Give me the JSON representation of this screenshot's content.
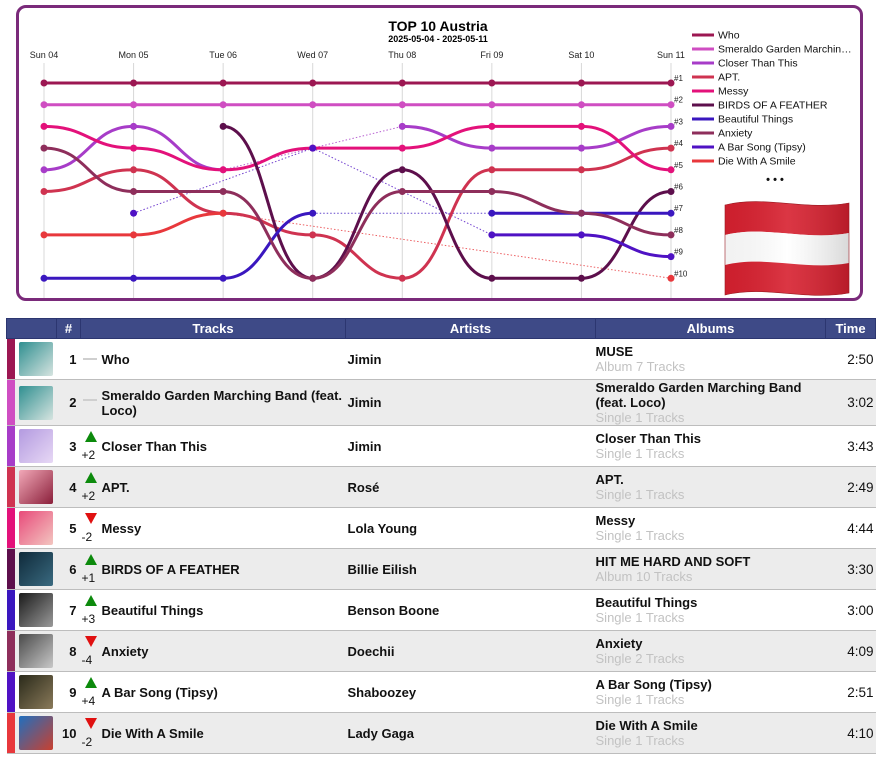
{
  "chart": {
    "title": "TOP 10 Austria",
    "subtitle": "2025-05-04 - 2025-05-11",
    "days": [
      "Sun 04",
      "Mon 05",
      "Tue 06",
      "Wed 07",
      "Thu 08",
      "Fri 09",
      "Sat 10",
      "Sun 11"
    ],
    "rank_labels": [
      "#1",
      "#2",
      "#3",
      "#4",
      "#5",
      "#6",
      "#7",
      "#8",
      "#9",
      "#10"
    ],
    "legend_more": "• • •",
    "flag_icon": "austria-flag-icon"
  },
  "chart_data": {
    "type": "line",
    "title": "TOP 10 Austria",
    "subtitle": "2025-05-04 - 2025-05-11",
    "x": [
      "Sun 04",
      "Mon 05",
      "Tue 06",
      "Wed 07",
      "Thu 08",
      "Fri 09",
      "Sat 10",
      "Sun 11"
    ],
    "y_axis": "rank (1 at top)",
    "ylim": [
      1,
      10
    ],
    "series": [
      {
        "name": "Who",
        "color": "#9c1752",
        "ranks": [
          1,
          1,
          1,
          1,
          1,
          1,
          1,
          1
        ]
      },
      {
        "name": "Smeraldo Garden Marching Band (feat. Loco)",
        "color": "#cf4ec2",
        "ranks": [
          2,
          2,
          2,
          2,
          2,
          2,
          2,
          2
        ]
      },
      {
        "name": "Closer Than This",
        "color": "#a73cc8",
        "ranks": [
          5,
          3,
          5,
          null,
          3,
          4,
          4,
          3
        ]
      },
      {
        "name": "APT.",
        "color": "#cf3350",
        "ranks": [
          6,
          5,
          7,
          8,
          10,
          5,
          5,
          4
        ]
      },
      {
        "name": "Messy",
        "color": "#e3117a",
        "ranks": [
          3,
          4,
          5,
          4,
          4,
          3,
          3,
          5
        ]
      },
      {
        "name": "BIRDS OF A FEATHER",
        "color": "#5d0f4c",
        "ranks": [
          null,
          null,
          3,
          10,
          5,
          10,
          10,
          6
        ]
      },
      {
        "name": "Beautiful Things",
        "color": "#3a17bf",
        "ranks": [
          10,
          10,
          10,
          7,
          null,
          7,
          7,
          7
        ]
      },
      {
        "name": "Anxiety",
        "color": "#8e2e5b",
        "ranks": [
          4,
          6,
          6,
          10,
          6,
          6,
          7,
          8
        ]
      },
      {
        "name": "A Bar Song (Tipsy)",
        "color": "#4f12c4",
        "ranks": [
          null,
          7,
          null,
          4,
          null,
          8,
          8,
          9
        ]
      },
      {
        "name": "Die With A Smile",
        "color": "#e8383c",
        "ranks": [
          8,
          8,
          7,
          null,
          null,
          null,
          null,
          10
        ]
      }
    ]
  },
  "table": {
    "headers": {
      "rank": "#",
      "tracks": "Tracks",
      "artists": "Artists",
      "albums": "Albums",
      "time": "Time"
    },
    "rows": [
      {
        "rank": "1",
        "change": "",
        "dir": "same",
        "track": "Who",
        "artist": "Jimin",
        "album": "MUSE",
        "album_sub": "Album 7 Tracks",
        "time": "2:50",
        "color": "#9c1752",
        "cover_colors": [
          "#2f8f90",
          "#d6e4e0"
        ],
        "cover_icon": "album-cover-muse"
      },
      {
        "rank": "2",
        "change": "",
        "dir": "same",
        "track": "Smeraldo Garden Marching Band (feat. Loco)",
        "artist": "Jimin",
        "album": "Smeraldo Garden Marching Band (feat. Loco)",
        "album_sub": "Single 1 Tracks",
        "time": "3:02",
        "color": "#cf4ec2",
        "cover_colors": [
          "#2f8f90",
          "#d6e4e0"
        ],
        "cover_icon": "album-cover-muse"
      },
      {
        "rank": "3",
        "change": "+2",
        "dir": "up",
        "track": "Closer Than This",
        "artist": "Jimin",
        "album": "Closer Than This",
        "album_sub": "Single 1 Tracks",
        "time": "3:43",
        "color": "#a73cc8",
        "cover_colors": [
          "#b39ae0",
          "#e7d8f5"
        ],
        "cover_icon": "album-cover-closer-than-this"
      },
      {
        "rank": "4",
        "change": "+2",
        "dir": "up",
        "track": "APT.",
        "artist": "Rosé",
        "album": "APT.",
        "album_sub": "Single 1 Tracks",
        "time": "2:49",
        "color": "#cf3350",
        "cover_colors": [
          "#f2a8b8",
          "#8a1f3a"
        ],
        "cover_icon": "album-cover-apt"
      },
      {
        "rank": "5",
        "change": "-2",
        "dir": "down",
        "track": "Messy",
        "artist": "Lola Young",
        "album": "Messy",
        "album_sub": "Single 1 Tracks",
        "time": "4:44",
        "color": "#e3117a",
        "cover_colors": [
          "#e84a7a",
          "#f3c6c0"
        ],
        "cover_icon": "album-cover-messy"
      },
      {
        "rank": "6",
        "change": "+1",
        "dir": "up",
        "track": "BIRDS OF A FEATHER",
        "artist": "Billie Eilish",
        "album": "HIT ME HARD AND SOFT",
        "album_sub": "Album 10 Tracks",
        "time": "3:30",
        "color": "#5d0f4c",
        "cover_colors": [
          "#0f2a3a",
          "#3a6a80"
        ],
        "cover_icon": "album-cover-hit-me-hard-and-soft"
      },
      {
        "rank": "7",
        "change": "+3",
        "dir": "up",
        "track": "Beautiful Things",
        "artist": "Benson Boone",
        "album": "Beautiful Things",
        "album_sub": "Single 1 Tracks",
        "time": "3:00",
        "color": "#3a17bf",
        "cover_colors": [
          "#1a1a1a",
          "#9a9a9a"
        ],
        "cover_icon": "album-cover-beautiful-things"
      },
      {
        "rank": "8",
        "change": "-4",
        "dir": "down",
        "track": "Anxiety",
        "artist": "Doechii",
        "album": "Anxiety",
        "album_sub": "Single 2 Tracks",
        "time": "4:09",
        "color": "#8e2e5b",
        "cover_colors": [
          "#4a4a4a",
          "#c8c8c8"
        ],
        "cover_icon": "album-cover-anxiety"
      },
      {
        "rank": "9",
        "change": "+4",
        "dir": "up",
        "track": "A Bar Song (Tipsy)",
        "artist": "Shaboozey",
        "album": "A Bar Song (Tipsy)",
        "album_sub": "Single 1 Tracks",
        "time": "2:51",
        "color": "#4f12c4",
        "cover_colors": [
          "#2a2a1a",
          "#8a7a5a"
        ],
        "cover_icon": "album-cover-a-bar-song"
      },
      {
        "rank": "10",
        "change": "-2",
        "dir": "down",
        "track": "Die With A Smile",
        "artist": "Lady Gaga",
        "album": "Die With A Smile",
        "album_sub": "Single 1 Tracks",
        "time": "4:10",
        "color": "#e8383c",
        "cover_colors": [
          "#1f6fbf",
          "#c9402f"
        ],
        "cover_icon": "album-cover-die-with-a-smile"
      }
    ]
  }
}
